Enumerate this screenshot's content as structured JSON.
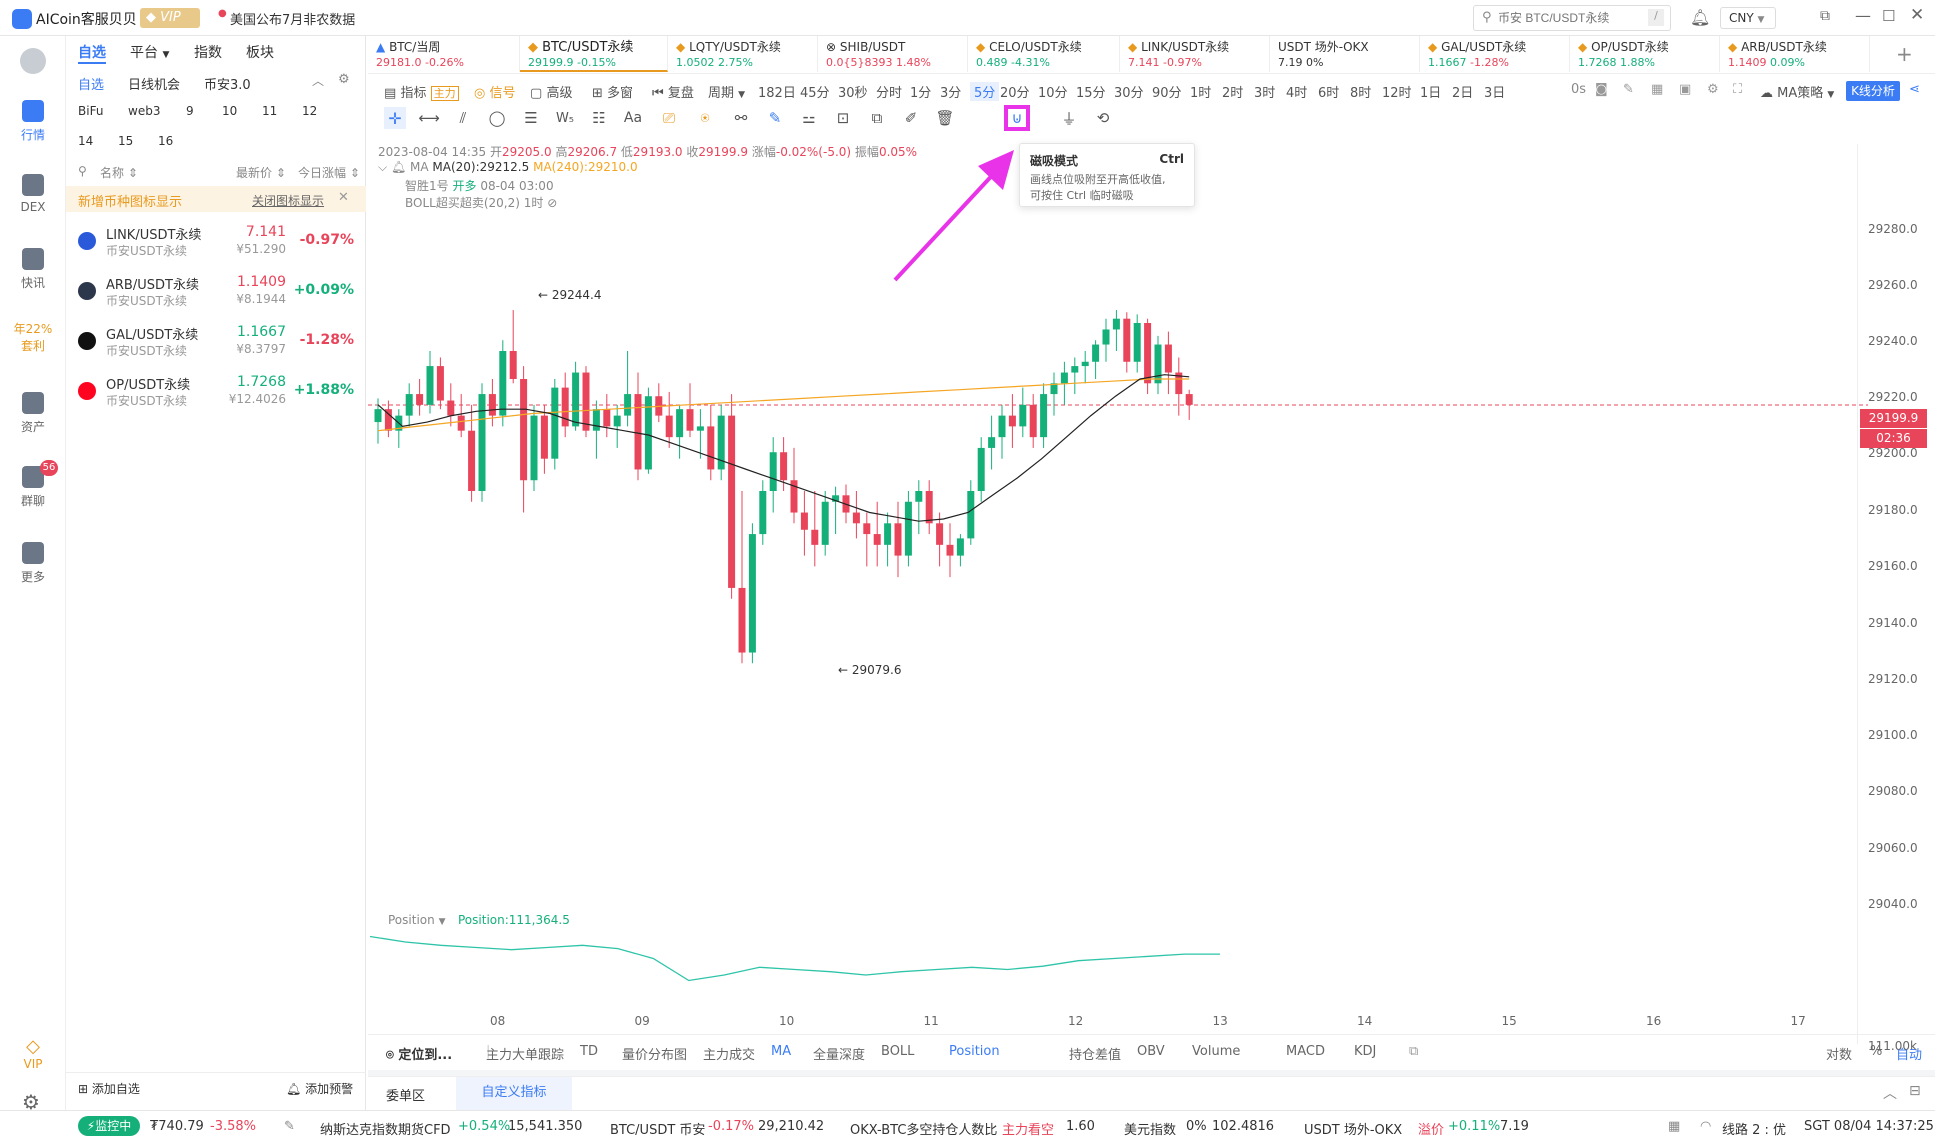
{
  "app": {
    "title": "AICoin客服贝贝",
    "vip": "VIP",
    "news": "美国公布7月非农数据",
    "search_placeholder": "币安 BTC/USDT永续",
    "search_key": "/",
    "currency": "CNY"
  },
  "leftnav": [
    {
      "label": "行情",
      "active": true
    },
    {
      "label": "DEX"
    },
    {
      "label": "快讯"
    },
    {
      "label": "年22%\n套利"
    },
    {
      "label": "资产"
    },
    {
      "label": "群聊",
      "badge": "56"
    },
    {
      "label": "更多"
    },
    {
      "label": "VIP"
    }
  ],
  "sidebar": {
    "tabs": [
      "自选",
      "平台",
      "指数",
      "板块"
    ],
    "subtabs": [
      "自选",
      "日线机会",
      "币安3.0"
    ],
    "groups": [
      "BiFu",
      "web3",
      "9",
      "10",
      "11",
      "12",
      "14",
      "15",
      "16"
    ],
    "col_name": "名称",
    "col_price": "最新价",
    "col_change": "今日涨幅",
    "notice": "新增币种图标显示",
    "notice_close": "关闭图标显示",
    "items": [
      {
        "sym": "LINK/USDT永续",
        "sub": "币安USDT永续",
        "price": "7.141",
        "cny": "¥51.290",
        "change": "-0.97%",
        "dir": "down",
        "color": "#2a5ada"
      },
      {
        "sym": "ARB/USDT永续",
        "sub": "币安USDT永续",
        "price": "1.1409",
        "cny": "¥8.1944",
        "change": "+0.09%",
        "dir": "up",
        "color": "#2d374b"
      },
      {
        "sym": "GAL/USDT永续",
        "sub": "币安USDT永续",
        "price": "1.1667",
        "cny": "¥8.3797",
        "change": "-1.28%",
        "dir": "up",
        "color": "#111111"
      },
      {
        "sym": "OP/USDT永续",
        "sub": "币安USDT永续",
        "price": "1.7268",
        "cny": "¥12.4026",
        "change": "+1.88%",
        "dir": "up",
        "color": "#ff0420"
      }
    ],
    "add_watch": "添加自选",
    "add_alert": "添加预警"
  },
  "tabs": [
    {
      "name": "BTC/当周",
      "price": "29181.0",
      "change": "-0.26%",
      "dir": "down"
    },
    {
      "name": "BTC/USDT永续",
      "price": "29199.9",
      "change": "-0.15%",
      "dir": "up",
      "active": true
    },
    {
      "name": "LQTY/USDT永续",
      "price": "1.0502",
      "change": "2.75%",
      "dir": "up"
    },
    {
      "name": "SHIB/USDT",
      "price": "0.0{5}8393",
      "change": "1.48%",
      "dir": "down"
    },
    {
      "name": "CELO/USDT永续",
      "price": "0.489",
      "change": "-4.31%",
      "dir": "up"
    },
    {
      "name": "LINK/USDT永续",
      "price": "7.141",
      "change": "-0.97%",
      "dir": "down"
    },
    {
      "name": "USDT 场外-OKX",
      "price": "7.19",
      "change": "0%",
      "dir": "flat"
    },
    {
      "name": "GAL/USDT永续",
      "price": "1.1667",
      "change": "-1.28%",
      "dir": "up"
    },
    {
      "name": "OP/USDT永续",
      "price": "1.7268",
      "change": "1.88%",
      "dir": "up"
    },
    {
      "name": "ARB/USDT永续",
      "price": "1.1409",
      "change": "0.09%",
      "dir": "down"
    }
  ],
  "toolbar": {
    "indicator": "指标",
    "main_force": "主力",
    "signal": "信号",
    "advanced": "高级",
    "multi": "多窗",
    "replay": "复盘",
    "period": "周期",
    "periods": [
      "182日",
      "45分",
      "30秒",
      "分时",
      "1分",
      "3分",
      "5分",
      "20分",
      "10分",
      "15分",
      "30分",
      "90分",
      "1时",
      "2时",
      "3时",
      "4时",
      "6时",
      "8时",
      "12时",
      "1日",
      "2日",
      "3日"
    ],
    "active_period": "5分",
    "countdown": "0s",
    "strategy": "MA策略",
    "kline_analysis": "K线分析"
  },
  "tooltip": {
    "title": "磁吸模式",
    "shortcut": "Ctrl",
    "line1": "画线点位吸附至开高低收值,",
    "line2": "可按住 Ctrl 临时磁吸"
  },
  "ohlc": {
    "time": "2023-08-04 14:35",
    "open_label": "开",
    "open": "29205.0",
    "high_label": "高",
    "high": "29206.7",
    "low_label": "低",
    "low": "29193.0",
    "close_label": "收",
    "close": "29199.9",
    "change_label": "涨幅",
    "change": "-0.02%(-5.0)",
    "amp_label": "振幅",
    "amp": "0.05%",
    "ma_label": "MA",
    "ma20": "MA(20):29212.5",
    "ma240": "MA(240):29210.0",
    "signal_name": "智胜1号",
    "signal_action": "开多",
    "signal_time": "08-04 03:00",
    "boll": "BOLL超买超卖(20,2) 1时"
  },
  "price_axis": [
    "29280.0",
    "29260.0",
    "29240.0",
    "29220.0",
    "29200.0",
    "29180.0",
    "29160.0",
    "29140.0",
    "29120.0",
    "29100.0",
    "29080.0",
    "29060.0",
    "29040.0",
    "111.00k"
  ],
  "time_axis": [
    "08",
    "09",
    "10",
    "11",
    "12",
    "13",
    "14",
    "15",
    "16",
    "17"
  ],
  "current_price": "29199.9",
  "countdown_tag": "02:36",
  "annotations": {
    "high": "29244.4",
    "low": "29079.6"
  },
  "position": {
    "label": "Position",
    "value": "Position:111,364.5"
  },
  "indicator_bar": {
    "locate": "定位到...",
    "items": [
      "主力大单跟踪",
      "TD",
      "量价分布图",
      "主力成交",
      "MA",
      "全量深度",
      "BOLL",
      "Position",
      "持仓差值",
      "OBV",
      "Volume",
      "MACD",
      "KDJ"
    ],
    "active": [
      "MA",
      "Position"
    ],
    "right": [
      "对数",
      "%",
      "自动"
    ]
  },
  "bottom_tabs": [
    "委单区",
    "自定义指标"
  ],
  "statusbar": {
    "monitor": "监控中",
    "amount": "₮740.79",
    "amount_change": "-3.58%",
    "nasdaq": "纳斯达克指数期货CFD",
    "nasdaq_change": "+0.54%",
    "nasdaq_val": "15,541.350",
    "btc": "BTC/USDT 币安",
    "btc_change": "-0.17%",
    "btc_val": "29,210.42",
    "okx": "OKX-BTC多空持仓人数比",
    "okx_status": "主力看空",
    "okx_val": "1.60",
    "usd": "美元指数",
    "usd_change": "0%",
    "usd_val": "102.4816",
    "usdt": "USDT 场外-OKX",
    "usdt_premium": "溢价",
    "usdt_change": "+0.11%",
    "usdt_val": "7.19",
    "line": "线路 2 : 优",
    "time": "SGT 08/04 14:37:25"
  },
  "chart_data": {
    "type": "candlestick",
    "ylim": [
      29030,
      29290
    ],
    "timeframe": "5分",
    "x_ticks": [
      "08",
      "09",
      "10",
      "11",
      "12",
      "13",
      "14",
      "15",
      "16",
      "17"
    ],
    "candles_ohlc": [
      [
        29192,
        29203,
        29182,
        29198
      ],
      [
        29198,
        29202,
        29185,
        29188
      ],
      [
        29188,
        29198,
        29180,
        29195
      ],
      [
        29195,
        29210,
        29190,
        29205
      ],
      [
        29205,
        29212,
        29195,
        29200
      ],
      [
        29200,
        29225,
        29196,
        29218
      ],
      [
        29218,
        29222,
        29198,
        29202
      ],
      [
        29202,
        29210,
        29190,
        29195
      ],
      [
        29195,
        29205,
        29185,
        29188
      ],
      [
        29188,
        29200,
        29155,
        29160
      ],
      [
        29160,
        29210,
        29155,
        29205
      ],
      [
        29205,
        29212,
        29190,
        29195
      ],
      [
        29195,
        29230,
        29190,
        29225
      ],
      [
        29225,
        29244,
        29210,
        29212
      ],
      [
        29212,
        29218,
        29150,
        29165
      ],
      [
        29165,
        29200,
        29160,
        29195
      ],
      [
        29195,
        29200,
        29168,
        29175
      ],
      [
        29175,
        29212,
        29170,
        29208
      ],
      [
        29208,
        29215,
        29185,
        29190
      ],
      [
        29190,
        29220,
        29188,
        29215
      ],
      [
        29215,
        29218,
        29185,
        29188
      ],
      [
        29188,
        29202,
        29175,
        29198
      ],
      [
        29198,
        29205,
        29185,
        29190
      ],
      [
        29190,
        29200,
        29180,
        29195
      ],
      [
        29195,
        29225,
        29190,
        29205
      ],
      [
        29205,
        29215,
        29165,
        29170
      ],
      [
        29170,
        29208,
        29168,
        29204
      ],
      [
        29204,
        29210,
        29192,
        29195
      ],
      [
        29195,
        29206,
        29180,
        29185
      ],
      [
        29185,
        29200,
        29175,
        29198
      ],
      [
        29198,
        29210,
        29185,
        29188
      ],
      [
        29188,
        29198,
        29175,
        29190
      ],
      [
        29190,
        29200,
        29165,
        29170
      ],
      [
        29170,
        29200,
        29165,
        29195
      ],
      [
        29195,
        29205,
        29110,
        29115
      ],
      [
        29115,
        29160,
        29080,
        29085
      ],
      [
        29085,
        29145,
        29080,
        29140
      ],
      [
        29140,
        29165,
        29135,
        29160
      ],
      [
        29160,
        29185,
        29150,
        29178
      ],
      [
        29178,
        29185,
        29160,
        29165
      ],
      [
        29165,
        29180,
        29145,
        29150
      ],
      [
        29150,
        29160,
        29130,
        29142
      ],
      [
        29142,
        29160,
        29125,
        29135
      ],
      [
        29135,
        29160,
        29130,
        29155
      ],
      [
        29155,
        29162,
        29140,
        29158
      ],
      [
        29158,
        29163,
        29145,
        29150
      ],
      [
        29150,
        29160,
        29138,
        29145
      ],
      [
        29145,
        29150,
        29125,
        29140
      ],
      [
        29140,
        29155,
        29125,
        29135
      ],
      [
        29135,
        29150,
        29125,
        29145
      ],
      [
        29145,
        29155,
        29120,
        29130
      ],
      [
        29130,
        29160,
        29125,
        29155
      ],
      [
        29155,
        29165,
        29140,
        29160
      ],
      [
        29160,
        29165,
        29140,
        29145
      ],
      [
        29145,
        29150,
        29125,
        29135
      ],
      [
        29135,
        29145,
        29120,
        29130
      ],
      [
        29130,
        29140,
        29125,
        29138
      ],
      [
        29138,
        29165,
        29135,
        29160
      ],
      [
        29160,
        29185,
        29155,
        29180
      ],
      [
        29180,
        29195,
        29170,
        29185
      ],
      [
        29185,
        29200,
        29175,
        29195
      ],
      [
        29195,
        29205,
        29180,
        29190
      ],
      [
        29190,
        29208,
        29185,
        29200
      ],
      [
        29200,
        29205,
        29180,
        29185
      ],
      [
        29185,
        29210,
        29180,
        29205
      ],
      [
        29205,
        29215,
        29195,
        29210
      ],
      [
        29210,
        29220,
        29200,
        29215
      ],
      [
        29215,
        29222,
        29205,
        29218
      ],
      [
        29218,
        29225,
        29210,
        29220
      ],
      [
        29220,
        29230,
        29212,
        29228
      ],
      [
        29228,
        29240,
        29220,
        29235
      ],
      [
        29235,
        29244,
        29225,
        29240
      ],
      [
        29240,
        29243,
        29215,
        29220
      ],
      [
        29220,
        29242,
        29215,
        29238
      ],
      [
        29238,
        29240,
        29205,
        29210
      ],
      [
        29210,
        29232,
        29205,
        29228
      ],
      [
        29228,
        29234,
        29205,
        29215
      ],
      [
        29215,
        29222,
        29195,
        29205
      ],
      [
        29205,
        29207,
        29193,
        29200
      ]
    ],
    "ma20_line": [
      29200,
      29190,
      29192,
      29195,
      29197,
      29198,
      29198,
      29196,
      29192,
      29190,
      29188,
      29186,
      29182,
      29178,
      29174,
      29170,
      29166,
      29162,
      29158,
      29154,
      29150,
      29148,
      29146,
      29147,
      29150,
      29158,
      29166,
      29175,
      29185,
      29195,
      29204,
      29212,
      29214,
      29213
    ],
    "ma240_line": [
      29188,
      29190,
      29192,
      29194,
      29196,
      29197,
      29198,
      29199,
      29200,
      29201,
      29202,
      29203,
      29204,
      29205,
      29206,
      29207,
      29208,
      29209,
      29210,
      29211,
      29212,
      29212
    ],
    "position_line": [
      111380,
      111375,
      111372,
      111370,
      111368,
      111370,
      111372,
      111369,
      111360,
      111340,
      111345,
      111352,
      111350,
      111348,
      111345,
      111348,
      111350,
      111352,
      111350,
      111353,
      111358,
      111360,
      111362,
      111364,
      111364
    ]
  }
}
